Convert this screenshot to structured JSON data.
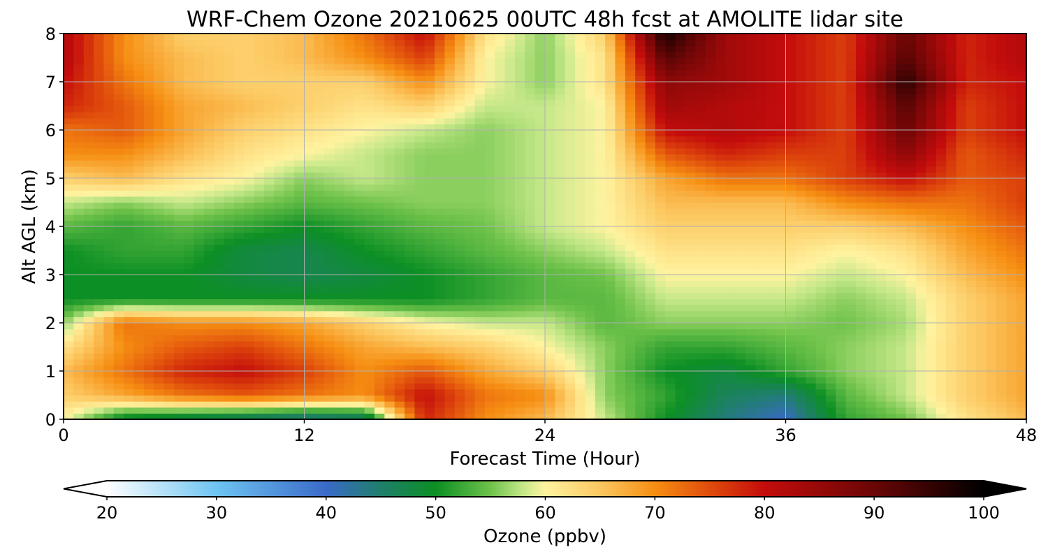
{
  "title": "WRF-Chem Ozone  20210625 00UTC 48h fcst at AMOLITE lidar site",
  "chart_data": {
    "type": "heatmap",
    "title": "WRF-Chem Ozone  20210625 00UTC 48h fcst at AMOLITE lidar site",
    "xlabel": "Forecast Time (Hour)",
    "ylabel": "Alt AGL (km)",
    "xlim": [
      0,
      48
    ],
    "ylim": [
      0,
      8
    ],
    "xticks": [
      "0",
      "12",
      "24",
      "36",
      "48"
    ],
    "yticks": [
      "0",
      "1",
      "2",
      "3",
      "4",
      "5",
      "6",
      "7",
      "8"
    ],
    "grid": true,
    "x": [
      0,
      3,
      6,
      9,
      12,
      15,
      18,
      21,
      24,
      27,
      30,
      33,
      36,
      39,
      42,
      45,
      48
    ],
    "y": [
      0,
      0.5,
      1,
      1.5,
      2,
      2.5,
      3,
      3.5,
      4,
      4.5,
      5,
      5.5,
      6,
      6.5,
      7,
      7.5,
      8
    ],
    "z": [
      [
        60,
        48,
        46,
        44,
        42,
        44,
        78,
        70,
        66,
        58,
        50,
        44,
        40,
        52,
        55,
        62,
        66
      ],
      [
        64,
        68,
        72,
        74,
        72,
        70,
        80,
        72,
        70,
        56,
        52,
        46,
        44,
        54,
        58,
        64,
        68
      ],
      [
        66,
        72,
        78,
        80,
        76,
        70,
        74,
        68,
        64,
        56,
        50,
        48,
        52,
        56,
        58,
        64,
        68
      ],
      [
        62,
        70,
        74,
        76,
        72,
        68,
        66,
        64,
        60,
        56,
        52,
        52,
        54,
        56,
        58,
        64,
        68
      ],
      [
        56,
        72,
        70,
        70,
        68,
        64,
        60,
        58,
        58,
        54,
        56,
        56,
        56,
        55,
        57,
        64,
        68
      ],
      [
        50,
        50,
        50,
        50,
        50,
        50,
        50,
        52,
        54,
        54,
        58,
        58,
        58,
        56,
        58,
        64,
        68
      ],
      [
        50,
        50,
        50,
        48,
        47,
        48,
        50,
        52,
        54,
        55,
        60,
        60,
        60,
        58,
        60,
        66,
        70
      ],
      [
        50,
        52,
        52,
        48,
        47,
        50,
        52,
        54,
        56,
        58,
        62,
        62,
        62,
        60,
        62,
        68,
        72
      ],
      [
        54,
        52,
        54,
        52,
        50,
        52,
        54,
        55,
        58,
        60,
        64,
        64,
        64,
        64,
        66,
        70,
        74
      ],
      [
        58,
        56,
        58,
        56,
        54,
        55,
        56,
        56,
        58,
        60,
        66,
        66,
        66,
        70,
        72,
        72,
        76
      ],
      [
        64,
        66,
        62,
        60,
        56,
        58,
        56,
        56,
        58,
        60,
        68,
        72,
        72,
        76,
        80,
        74,
        76
      ],
      [
        70,
        70,
        66,
        62,
        60,
        58,
        56,
        56,
        58,
        60,
        74,
        78,
        76,
        76,
        86,
        74,
        78
      ],
      [
        72,
        74,
        68,
        64,
        62,
        60,
        58,
        56,
        58,
        60,
        80,
        82,
        80,
        76,
        90,
        76,
        80
      ],
      [
        78,
        74,
        68,
        66,
        64,
        62,
        64,
        58,
        58,
        60,
        84,
        82,
        80,
        76,
        92,
        76,
        80
      ],
      [
        80,
        72,
        66,
        64,
        64,
        64,
        70,
        60,
        56,
        62,
        86,
        84,
        80,
        76,
        96,
        78,
        80
      ],
      [
        82,
        70,
        66,
        64,
        66,
        70,
        76,
        60,
        56,
        62,
        92,
        84,
        80,
        76,
        92,
        78,
        82
      ],
      [
        82,
        70,
        64,
        64,
        66,
        72,
        80,
        62,
        56,
        64,
        98,
        84,
        80,
        76,
        90,
        78,
        82
      ]
    ],
    "colorbar": {
      "label": "Ozone  (ppbv)",
      "min": 20,
      "max": 100,
      "ticks": [
        "20",
        "30",
        "40",
        "50",
        "60",
        "70",
        "80",
        "90",
        "100"
      ],
      "extend": "both",
      "colormap": [
        [
          20,
          "#ffffff"
        ],
        [
          30,
          "#6ec4f2"
        ],
        [
          40,
          "#3a6ac8"
        ],
        [
          45,
          "#1f7f6a"
        ],
        [
          50,
          "#0c8f24"
        ],
        [
          55,
          "#6ec24a"
        ],
        [
          58,
          "#c6e88a"
        ],
        [
          60,
          "#fff3a0"
        ],
        [
          65,
          "#fcc760"
        ],
        [
          70,
          "#f68e12"
        ],
        [
          75,
          "#e04c0c"
        ],
        [
          80,
          "#c40c0c"
        ],
        [
          90,
          "#6a0606"
        ],
        [
          100,
          "#000000"
        ]
      ]
    }
  }
}
